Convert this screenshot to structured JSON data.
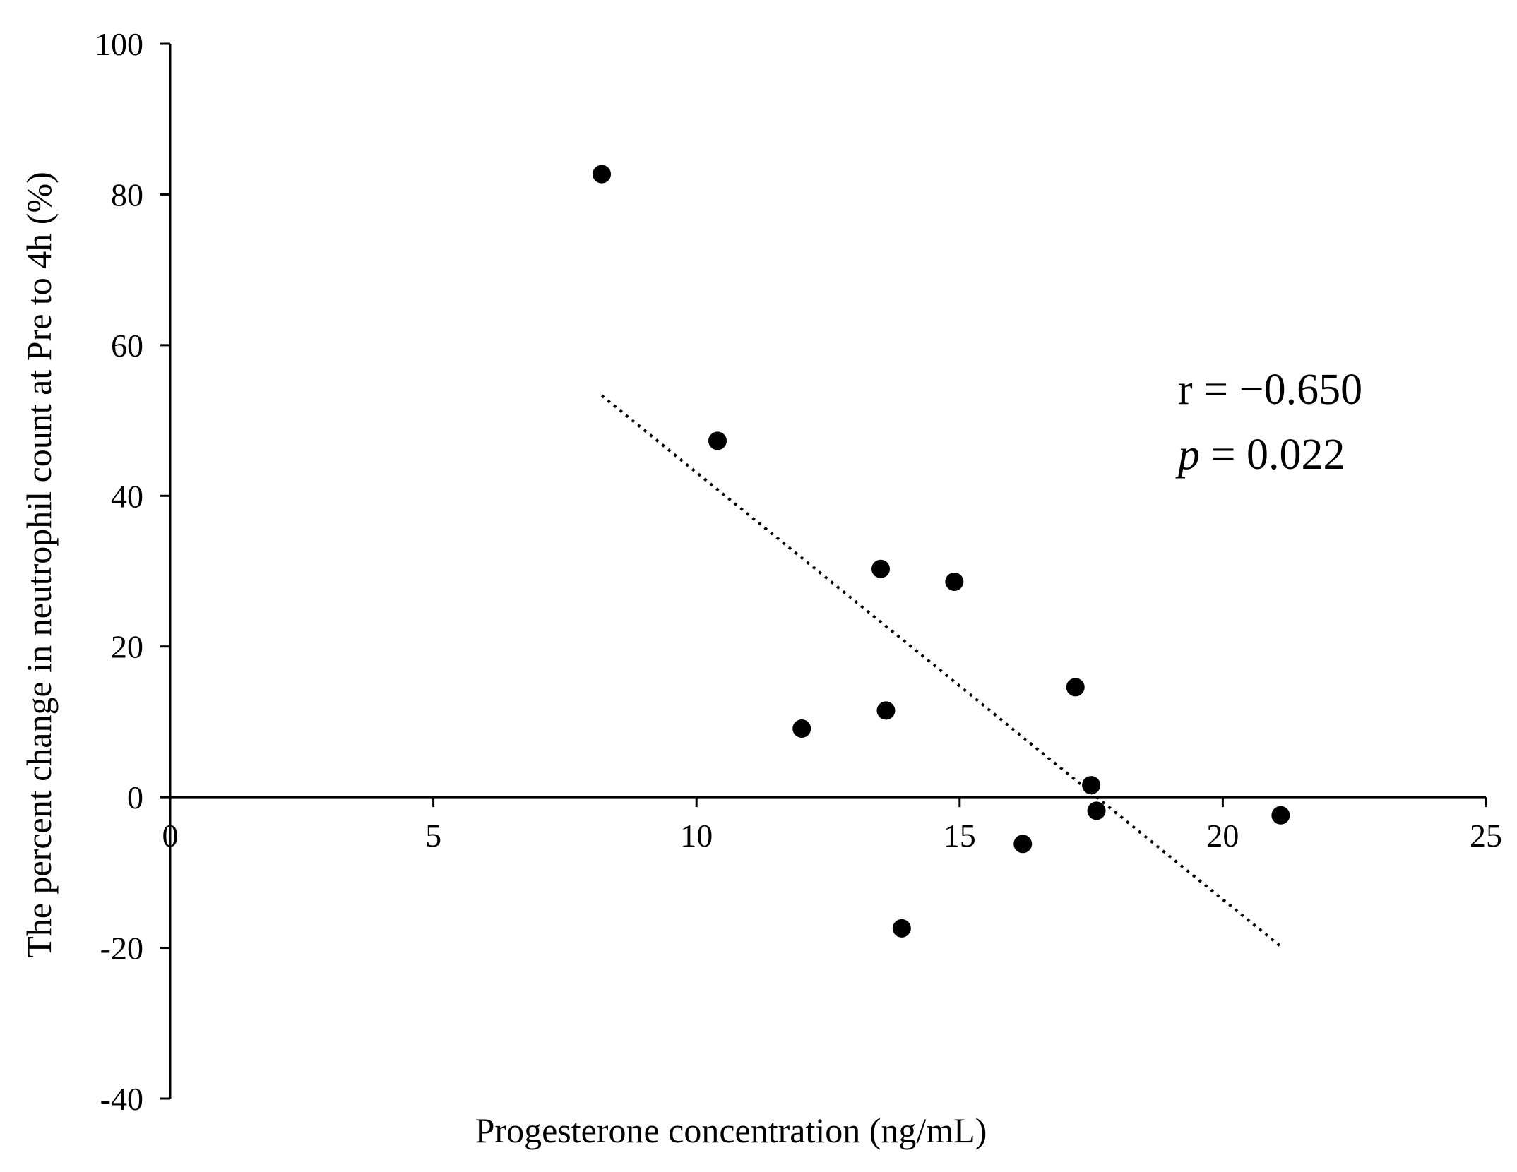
{
  "chart_data": {
    "type": "scatter",
    "title": "",
    "xlabel": "Progesterone concentration (ng/mL)",
    "ylabel": "The percent change in neutrophil count at Pre to 4h (%)",
    "xlim": [
      0,
      25
    ],
    "ylim": [
      -40,
      100
    ],
    "x_ticks": [
      0,
      5,
      10,
      15,
      20,
      25
    ],
    "x_tick_labels": [
      "0",
      "5",
      "10",
      "15",
      "20",
      "25"
    ],
    "y_ticks": [
      -40,
      -20,
      0,
      20,
      40,
      60,
      80,
      100
    ],
    "y_tick_labels": [
      "-40",
      "-20",
      "0",
      "20",
      "40",
      "60",
      "80",
      "100"
    ],
    "grid": false,
    "points": [
      {
        "x": 8.2,
        "y": 82.7
      },
      {
        "x": 10.4,
        "y": 47.3
      },
      {
        "x": 12.0,
        "y": 9.1
      },
      {
        "x": 13.5,
        "y": 30.3
      },
      {
        "x": 13.6,
        "y": 11.5
      },
      {
        "x": 13.9,
        "y": -17.4
      },
      {
        "x": 14.9,
        "y": 28.6
      },
      {
        "x": 16.2,
        "y": -6.2
      },
      {
        "x": 17.2,
        "y": 14.6
      },
      {
        "x": 17.5,
        "y": 1.6
      },
      {
        "x": 17.6,
        "y": -1.8
      },
      {
        "x": 21.1,
        "y": -2.4
      }
    ],
    "trendline": {
      "style": "dotted",
      "x_start": 8.2,
      "y_start": 53.3,
      "x_end": 21.1,
      "y_end": -19.8
    },
    "annotations": {
      "r_text": "r = −0.650",
      "p_label": "p",
      "p_value_text": " = 0.022"
    },
    "colors": {
      "points": "#000000",
      "axis": "#000000",
      "background": "#ffffff"
    }
  }
}
